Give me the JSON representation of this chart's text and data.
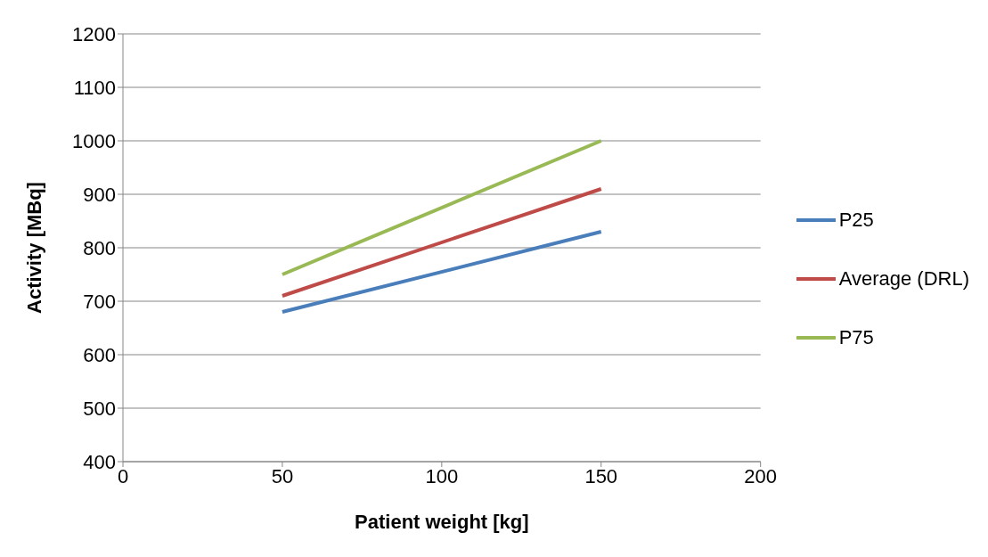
{
  "chart_data": {
    "type": "line",
    "xlabel": "Patient weight [kg]",
    "ylabel": "Activity [MBq]",
    "xlim": [
      0,
      200
    ],
    "xticks": [
      0,
      50,
      100,
      150,
      200
    ],
    "ylim": [
      400,
      1200
    ],
    "yticks": [
      400,
      500,
      600,
      700,
      800,
      900,
      1000,
      1100,
      1200
    ],
    "grid": "y",
    "legend": "right",
    "marker": "none",
    "line_style": "solid",
    "x": [
      50,
      150
    ],
    "series": [
      {
        "name": "P25",
        "color": "#4a7ebb",
        "values": [
          680,
          830
        ]
      },
      {
        "name": "Average (DRL)",
        "color": "#be4b48",
        "values": [
          710,
          910
        ]
      },
      {
        "name": "P75",
        "color": "#98b954",
        "values": [
          750,
          1000
        ]
      }
    ]
  }
}
